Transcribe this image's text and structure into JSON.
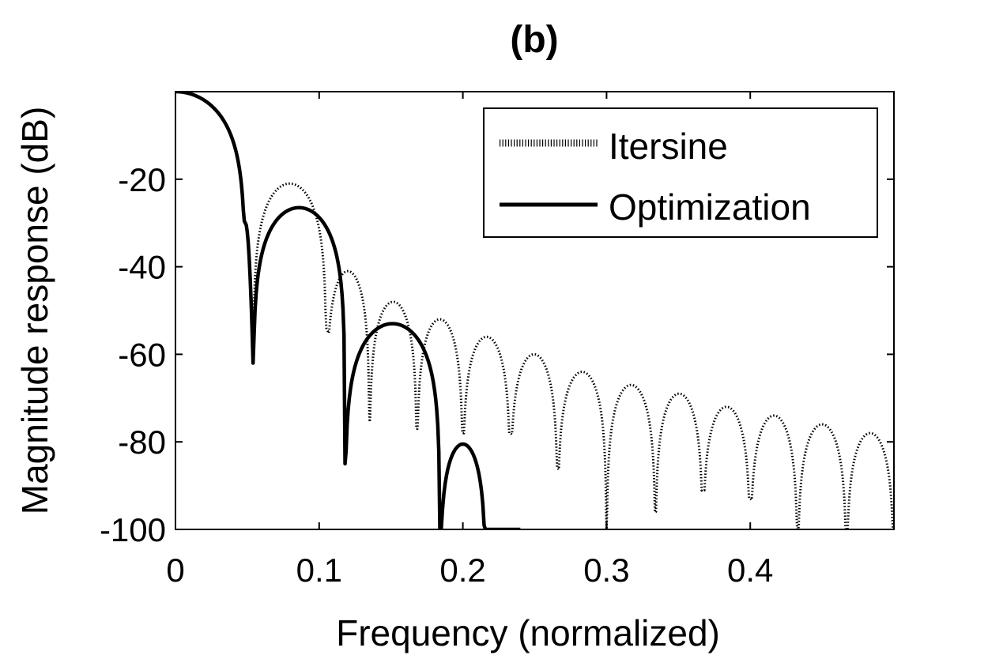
{
  "chart_data": {
    "type": "line",
    "title": "(b)",
    "xlabel": "Frequency (normalized)",
    "ylabel": "Magnitude response (dB)",
    "xlim": [
      0,
      0.5
    ],
    "ylim": [
      -100,
      0
    ],
    "xticks": [
      0,
      0.1,
      0.2,
      0.3,
      0.4
    ],
    "xtick_labels": [
      "0",
      "0.1",
      "0.2",
      "0.3",
      "0.4"
    ],
    "yticks": [
      -20,
      -40,
      -60,
      -80,
      -100
    ],
    "ytick_labels": [
      "-20",
      "-40",
      "-60",
      "-80",
      "-100"
    ],
    "grid": false,
    "legend_position": "top-right",
    "series": [
      {
        "name": "Itersine",
        "style": "dotted",
        "color": "#000000",
        "nulls": [
          0.054,
          0.105,
          0.135,
          0.168,
          0.2,
          0.233,
          0.266,
          0.3,
          0.334,
          0.367,
          0.4,
          0.433,
          0.467,
          0.5
        ],
        "null_depths": [
          -62,
          -54,
          -75,
          -77,
          -78,
          -78,
          -86,
          -100,
          -96,
          -91,
          -93,
          -100,
          -100,
          -100
        ],
        "lobe_peaks": [
          -21,
          -41,
          -48,
          -52,
          -56,
          -60,
          -64,
          -67,
          -69,
          -72,
          -74,
          -76,
          -78
        ]
      },
      {
        "name": "Optimization",
        "style": "solid",
        "color": "#000000",
        "nulls": [
          0.054,
          0.118,
          0.184
        ],
        "null_depths": [
          -62,
          -85,
          -100
        ],
        "lobe_peaks": [
          -26.5,
          -53,
          -80.5
        ],
        "end_x": 0.24,
        "end_y": -100
      }
    ]
  }
}
